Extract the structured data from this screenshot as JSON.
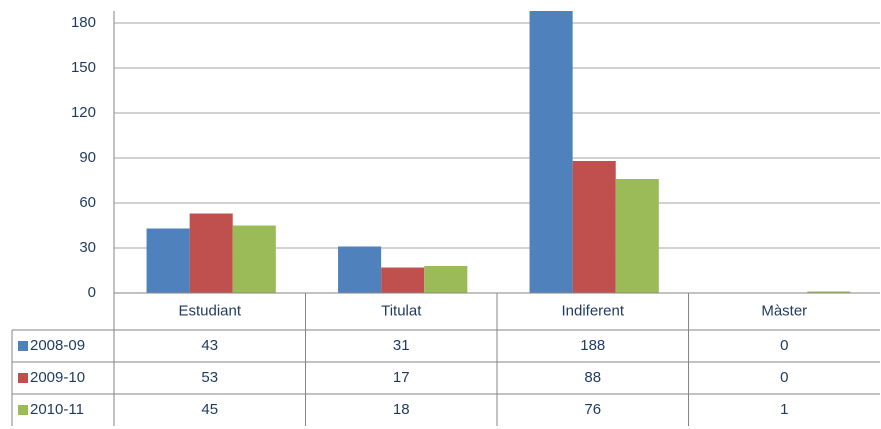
{
  "chart_data": {
    "type": "bar",
    "categories": [
      "Estudiant",
      "Titulat",
      "Indiferent",
      "Màster"
    ],
    "series": [
      {
        "name": "2008-09",
        "color": "#4f81bd",
        "values": [
          43,
          31,
          188,
          0
        ]
      },
      {
        "name": "2009-10",
        "color": "#c0504d",
        "values": [
          53,
          17,
          88,
          0
        ]
      },
      {
        "name": "2010-11",
        "color": "#9bbb59",
        "values": [
          45,
          18,
          76,
          1
        ]
      }
    ],
    "ylim": [
      0,
      188
    ],
    "yticks": [
      0,
      30,
      60,
      90,
      120,
      150,
      180
    ],
    "grid": true
  }
}
